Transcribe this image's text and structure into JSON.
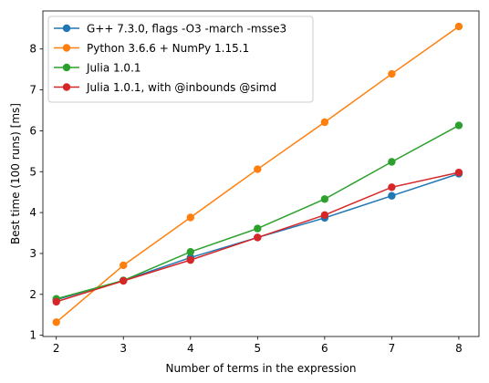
{
  "chart_data": {
    "type": "line",
    "title": "",
    "xlabel": "Number of terms in the expression",
    "ylabel": "Best time (100 runs) [ms]",
    "xlim": [
      1.8,
      8.3
    ],
    "ylim": [
      0.97,
      8.93
    ],
    "xticks": [
      2,
      3,
      4,
      5,
      6,
      7,
      8
    ],
    "yticks": [
      1,
      2,
      3,
      4,
      5,
      6,
      7,
      8
    ],
    "grid": false,
    "legend_position": "top-left",
    "x": [
      2,
      3,
      4,
      5,
      6,
      7,
      8
    ],
    "series": [
      {
        "name": "G++ 7.3.0, flags -O3 -march -msse3",
        "color": "#1f77b4",
        "values": [
          1.87,
          2.34,
          2.9,
          3.39,
          3.87,
          4.41,
          4.95
        ]
      },
      {
        "name": "Python 3.6.6 + NumPy 1.15.1",
        "color": "#ff7f0e",
        "values": [
          1.32,
          2.71,
          3.88,
          5.06,
          6.21,
          7.39,
          8.55
        ]
      },
      {
        "name": "Julia 1.0.1",
        "color": "#2ca02c",
        "values": [
          1.89,
          2.34,
          3.04,
          3.61,
          4.33,
          5.24,
          6.13
        ]
      },
      {
        "name": "Julia 1.0.1, with @inbounds @simd",
        "color": "#d62728",
        "values": [
          1.82,
          2.33,
          2.84,
          3.39,
          3.94,
          4.62,
          4.98
        ]
      }
    ]
  }
}
